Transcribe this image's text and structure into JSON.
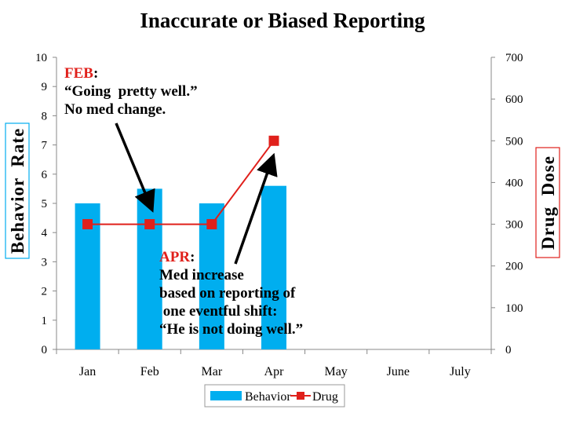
{
  "chart_data": {
    "type": "bar+line",
    "title": "Inaccurate or Biased Reporting",
    "categories": [
      "Jan",
      "Feb",
      "Mar",
      "Apr",
      "May",
      "June",
      "July"
    ],
    "y_left": {
      "label": "Behavior  Rate",
      "min": 0,
      "max": 10,
      "ticks": [
        0,
        1,
        2,
        3,
        4,
        5,
        6,
        7,
        8,
        9,
        10
      ]
    },
    "y_right": {
      "label": "Drug  Dose",
      "min": 0,
      "max": 700,
      "ticks": [
        0,
        100,
        200,
        300,
        400,
        500,
        600,
        700
      ]
    },
    "series": [
      {
        "name": "Behavior",
        "type": "bar",
        "axis": "left",
        "color": "#00aeef",
        "values": [
          5,
          5.5,
          5,
          5.6,
          null,
          null,
          null
        ]
      },
      {
        "name": "Drug",
        "type": "line",
        "axis": "right",
        "color": "#e0201b",
        "values": [
          300,
          300,
          300,
          500,
          null,
          null,
          null
        ]
      }
    ],
    "legend": {
      "position": "bottom",
      "items": [
        "Behavior",
        "Drug"
      ]
    },
    "annotations": {
      "feb": {
        "prefix": "FEB",
        "suffix": ":",
        "lines": [
          "“Going  pretty well.”",
          "No med change."
        ]
      },
      "apr": {
        "prefix": "APR",
        "suffix": ":",
        "lines": [
          "Med increase",
          "based on reporting of",
          " one eventful shift:",
          "“He is not doing well.”"
        ]
      }
    }
  }
}
